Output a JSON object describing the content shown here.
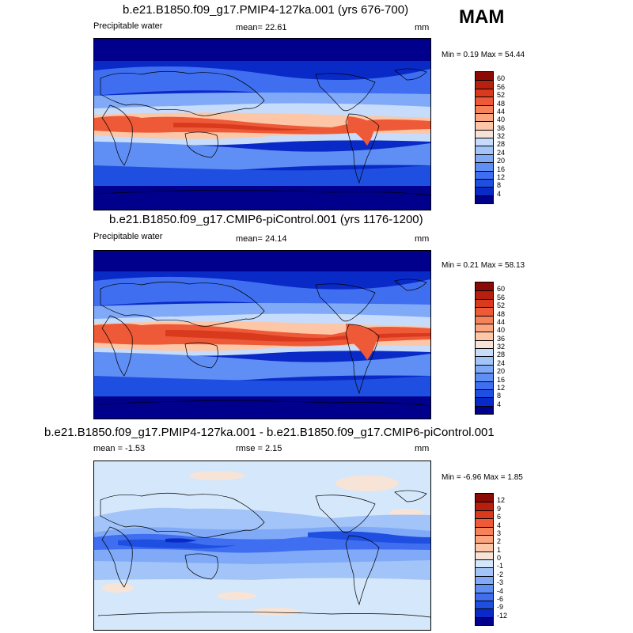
{
  "season": "MAM",
  "colors": {
    "abs_scale": [
      "#00008c",
      "#0a2ac8",
      "#1e4fe0",
      "#3f6ff0",
      "#5f8ef5",
      "#80aaf7",
      "#a3c4f8",
      "#c7dcfa",
      "#f6e2d6",
      "#fdc6a6",
      "#fca57e",
      "#f6825a",
      "#ee5a37",
      "#d93a1e",
      "#b81f0f",
      "#8b0a05"
    ],
    "diff_scale": [
      "#00008c",
      "#0a2ac8",
      "#1e4fe0",
      "#3f6ff0",
      "#5f8ef5",
      "#80aaf7",
      "#a3c4f8",
      "#d4e7fb",
      "#f8e4d6",
      "#fdc6a6",
      "#fca57e",
      "#f6825a",
      "#ee5a37",
      "#d93a1e",
      "#b81f0f",
      "#8b0a05"
    ]
  },
  "panels": [
    {
      "title": "b.e21.B1850.f09_g17.PMIP4-127ka.001 (yrs 676-700)",
      "left_label": "Precipitable water",
      "center_label": "mean=  22.61",
      "units": "mm",
      "minmax": "Min =  0.19 Max =  54.44",
      "colorbar_labels": [
        "60",
        "56",
        "52",
        "48",
        "44",
        "40",
        "36",
        "32",
        "28",
        "24",
        "20",
        "16",
        "12",
        "8",
        "4"
      ]
    },
    {
      "title": "b.e21.B1850.f09_g17.CMIP6-piControl.001 (yrs 1176-1200)",
      "left_label": "Precipitable water",
      "center_label": "mean=  24.14",
      "units": "mm",
      "minmax": "Min =  0.21 Max =  58.13",
      "colorbar_labels": [
        "60",
        "56",
        "52",
        "48",
        "44",
        "40",
        "36",
        "32",
        "28",
        "24",
        "20",
        "16",
        "12",
        "8",
        "4"
      ]
    },
    {
      "title": "b.e21.B1850.f09_g17.PMIP4-127ka.001 - b.e21.B1850.f09_g17.CMIP6-piControl.001",
      "left_label": "mean =  -1.53",
      "center_label": "rmse =  2.15",
      "units": "mm",
      "minmax": "Min =  -6.96 Max =   1.85",
      "colorbar_labels": [
        "12",
        "9",
        "6",
        "4",
        "3",
        "2",
        "1",
        "0",
        "-1",
        "-2",
        "-3",
        "-4",
        "-6",
        "-9",
        "-12"
      ]
    }
  ]
}
